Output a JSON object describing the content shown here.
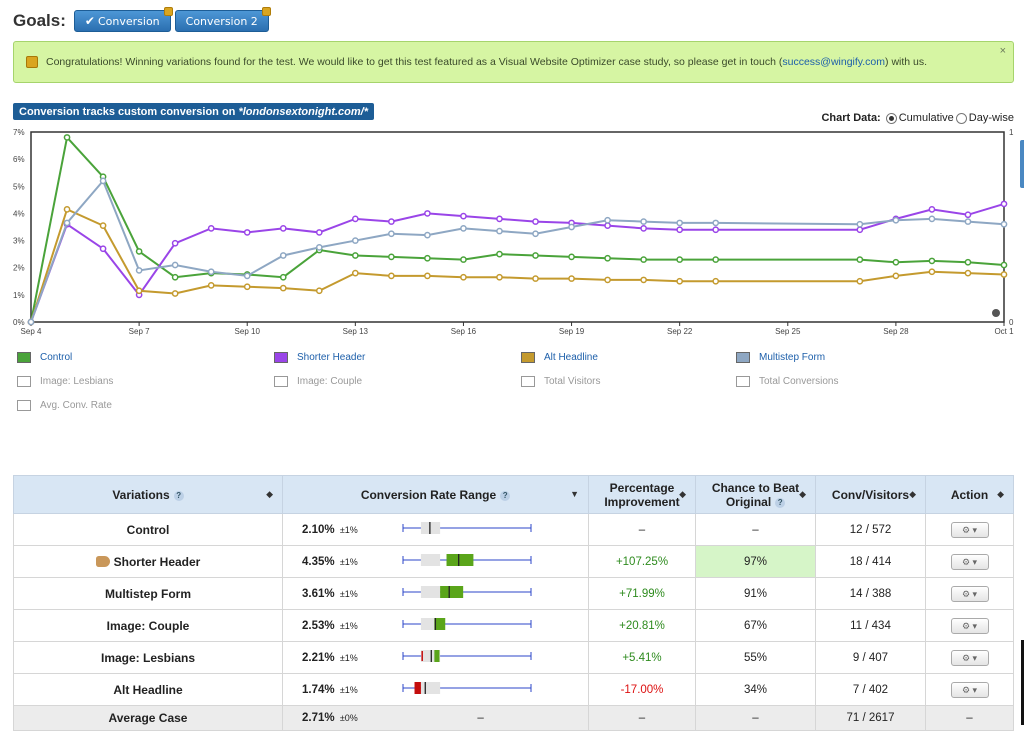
{
  "goals": {
    "label": "Goals:",
    "buttons": [
      {
        "label": "Conversion",
        "checked": true
      },
      {
        "label": "Conversion 2",
        "checked": false
      }
    ]
  },
  "banner": {
    "text_before": "Congratulations! Winning variations found for the test. We would like to get this test featured as a Visual Website Optimizer case study, so please get in touch (",
    "link": "success@wingify.com",
    "text_after": ") with us.",
    "close": "×"
  },
  "chart_header": {
    "prefix": "Conversion tracks custom conversion on ",
    "url": "*londonsextonight.com/*"
  },
  "chart_options": {
    "label": "Chart Data:",
    "cumulative": "Cumulative",
    "daywise": "Day-wise",
    "selected": "cumulative"
  },
  "chart_data": {
    "type": "line",
    "x": [
      "Sep 4",
      "Sep 5",
      "Sep 6",
      "Sep 7",
      "Sep 8",
      "Sep 9",
      "Sep 10",
      "Sep 11",
      "Sep 12",
      "Sep 13",
      "Sep 14",
      "Sep 15",
      "Sep 16",
      "Sep 17",
      "Sep 18",
      "Sep 19",
      "Sep 20",
      "Sep 21",
      "Sep 22",
      "Sep 23",
      "Sep 27",
      "Sep 28",
      "Sep 29",
      "Sep 30",
      "Oct 1"
    ],
    "xticks": [
      "Sep 4",
      "Sep 7",
      "Sep 10",
      "Sep 13",
      "Sep 16",
      "Sep 19",
      "Sep 22",
      "Sep 25",
      "Sep 28",
      "Oct 1"
    ],
    "ylim": [
      0,
      7
    ],
    "yticks": [
      "0%",
      "1%",
      "2%",
      "3%",
      "4%",
      "5%",
      "6%",
      "7%"
    ],
    "right_axis": [
      "0",
      "1"
    ],
    "series": [
      {
        "name": "Control",
        "color": "#4aa33a",
        "values": [
          0,
          6.8,
          5.35,
          2.6,
          1.65,
          1.8,
          1.75,
          1.65,
          2.65,
          2.45,
          2.4,
          2.35,
          2.3,
          2.5,
          2.45,
          2.4,
          2.35,
          2.3,
          2.3,
          2.3,
          2.3,
          2.2,
          2.25,
          2.2,
          2.1
        ]
      },
      {
        "name": "Shorter Header",
        "color": "#9a45e8",
        "values": [
          0,
          3.6,
          2.7,
          1.0,
          2.9,
          3.45,
          3.3,
          3.45,
          3.3,
          3.8,
          3.7,
          4.0,
          3.9,
          3.8,
          3.7,
          3.65,
          3.55,
          3.45,
          3.4,
          3.4,
          3.4,
          3.8,
          4.15,
          3.95,
          4.35
        ]
      },
      {
        "name": "Alt Headline",
        "color": "#c49a2e",
        "values": [
          0,
          4.15,
          3.55,
          1.15,
          1.05,
          1.35,
          1.3,
          1.25,
          1.15,
          1.8,
          1.7,
          1.7,
          1.65,
          1.65,
          1.6,
          1.6,
          1.55,
          1.55,
          1.5,
          1.5,
          1.5,
          1.7,
          1.85,
          1.8,
          1.75
        ]
      },
      {
        "name": "Multistep Form",
        "color": "#8ea7c3",
        "values": [
          0,
          3.65,
          5.2,
          1.9,
          2.1,
          1.85,
          1.7,
          2.45,
          2.75,
          3.0,
          3.25,
          3.2,
          3.45,
          3.35,
          3.25,
          3.5,
          3.75,
          3.7,
          3.65,
          3.65,
          3.6,
          3.75,
          3.8,
          3.7,
          3.6
        ]
      }
    ]
  },
  "legend": [
    {
      "label": "Control",
      "color": "#4aa33a",
      "on": true
    },
    {
      "label": "Shorter Header",
      "color": "#9a45e8",
      "on": true
    },
    {
      "label": "Alt Headline",
      "color": "#c49a2e",
      "on": true
    },
    {
      "label": "Multistep Form",
      "color": "#8ea7c3",
      "on": true
    },
    {
      "label": "Image: Lesbians",
      "color": "",
      "on": false
    },
    {
      "label": "Image: Couple",
      "color": "",
      "on": false
    },
    {
      "label": "Total Visitors",
      "color": "",
      "on": false
    },
    {
      "label": "Total Conversions",
      "color": "",
      "on": false
    },
    {
      "label": "Avg. Conv. Rate",
      "color": "",
      "on": false
    }
  ],
  "table": {
    "headers": {
      "variations": "Variations",
      "range": "Conversion Rate Range",
      "improvement_1": "Percentage",
      "improvement_2": "Improvement",
      "chance_1": "Chance to Beat",
      "chance_2": "Original",
      "conv": "Conv/Visitors",
      "action": "Action"
    },
    "range_scale": [
      0,
      10
    ],
    "rows": [
      {
        "name": "Control",
        "rate": "2.10%",
        "pm": "±1%",
        "range": [
          1.5,
          2.1,
          2.9
        ],
        "bar": "grey",
        "improvement": "–",
        "impclass": "",
        "chance": "–",
        "best": false,
        "conv": "12 / 572",
        "has_action": true
      },
      {
        "name": "Shorter Header",
        "hand": true,
        "rate": "4.35%",
        "pm": "±1%",
        "range": [
          3.4,
          4.35,
          5.5
        ],
        "bar": "green",
        "improvement": "+107.25%",
        "impclass": "pos",
        "chance": "97%",
        "best": true,
        "conv": "18 / 414",
        "has_action": true
      },
      {
        "name": "Multistep Form",
        "rate": "3.61%",
        "pm": "±1%",
        "range": [
          2.6,
          3.61,
          4.7
        ],
        "bar": "green",
        "improvement": "+71.99%",
        "impclass": "pos",
        "chance": "91%",
        "best": false,
        "conv": "14 / 388",
        "has_action": true
      },
      {
        "name": "Image: Couple",
        "rate": "2.53%",
        "pm": "±1%",
        "range": [
          1.8,
          2.53,
          3.3
        ],
        "bar": "green",
        "improvement": "+20.81%",
        "impclass": "pos",
        "chance": "67%",
        "best": false,
        "conv": "11 / 434",
        "has_action": true
      },
      {
        "name": "Image: Lesbians",
        "rate": "2.21%",
        "pm": "±1%",
        "range": [
          1.5,
          2.21,
          2.85
        ],
        "bar": "green",
        "improvement": "+5.41%",
        "impclass": "pos",
        "chance": "55%",
        "best": false,
        "conv": "9 / 407",
        "has_action": true
      },
      {
        "name": "Alt Headline",
        "rate": "1.74%",
        "pm": "±1%",
        "range": [
          0.9,
          1.74,
          2.4
        ],
        "bar": "red",
        "improvement": "-17.00%",
        "impclass": "neg",
        "chance": "34%",
        "best": false,
        "conv": "7 / 402",
        "has_action": true
      }
    ],
    "average": {
      "name": "Average Case",
      "rate": "2.71%",
      "pm": "±0%",
      "range": "–",
      "improvement": "–",
      "chance": "–",
      "conv": "71 / 2617",
      "action": "–"
    }
  }
}
